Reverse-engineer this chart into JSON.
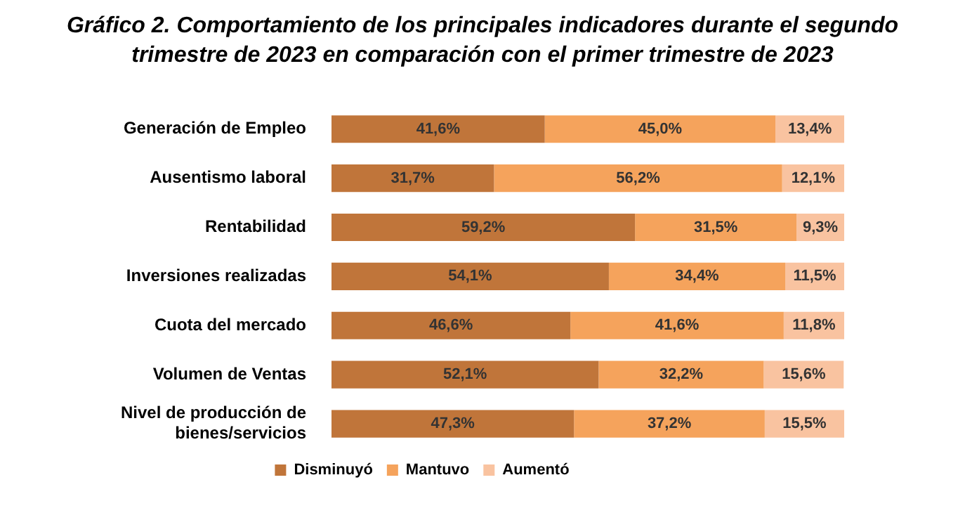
{
  "chart_data": {
    "type": "bar",
    "orientation": "horizontal",
    "stacked": true,
    "grid": false,
    "legend": "bottom",
    "title": "Gráfico 2. Comportamiento de los principales indicadores durante el segundo trimestre de 2023 en comparación con el primer trimestre de 2023",
    "categories": [
      "Generación de Empleo",
      "Ausentismo laboral",
      "Rentabilidad",
      "Inversiones realizadas",
      "Cuota del mercado",
      "Volumen de Ventas",
      "Nivel de producción de bienes/servicios"
    ],
    "series": [
      {
        "name": "Disminuyó",
        "color": "#c0753a",
        "values": [
          41.6,
          31.7,
          59.2,
          54.1,
          46.6,
          52.1,
          47.3
        ],
        "value_labels": [
          "41,6%",
          "31,7%",
          "59,2%",
          "54,1%",
          "46,6%",
          "52,1%",
          "47,3%"
        ]
      },
      {
        "name": "Mantuvo",
        "color": "#f5a35c",
        "values": [
          45.0,
          56.2,
          31.5,
          34.4,
          41.6,
          32.2,
          37.2
        ],
        "value_labels": [
          "45,0%",
          "56,2%",
          "31,5%",
          "34,4%",
          "41,6%",
          "32,2%",
          "37,2%"
        ]
      },
      {
        "name": "Aumentó",
        "color": "#f9c3a0",
        "values": [
          13.4,
          12.1,
          9.3,
          11.5,
          11.8,
          15.6,
          15.5
        ],
        "value_labels": [
          "13,4%",
          "12,1%",
          "9,3%",
          "11,5%",
          "11,8%",
          "15,6%",
          "15,5%"
        ]
      }
    ]
  }
}
